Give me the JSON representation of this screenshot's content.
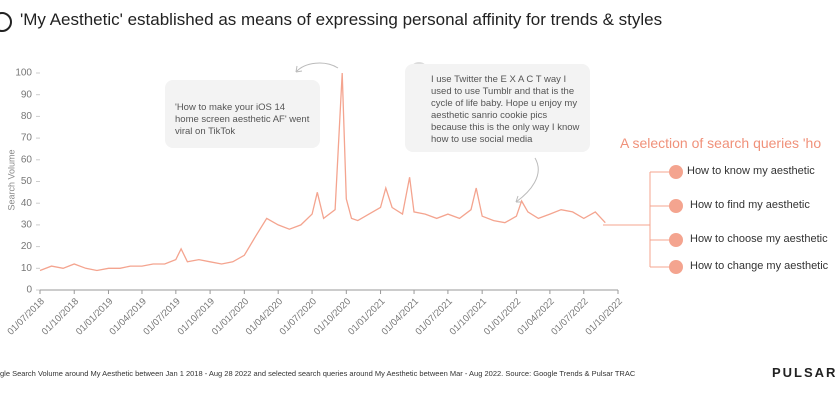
{
  "chart_data": {
    "type": "line",
    "title": "'My Aesthetic' established as means of expressing personal affinity for trends & styles",
    "y_label": "Search Volume",
    "color": "#f4a48f",
    "x": [
      "2018-07-01",
      "2018-08-01",
      "2018-09-01",
      "2018-10-01",
      "2018-11-01",
      "2018-12-01",
      "2019-01-01",
      "2019-02-01",
      "2019-03-01",
      "2019-04-01",
      "2019-05-01",
      "2019-06-01",
      "2019-07-01",
      "2019-07-15",
      "2019-08-01",
      "2019-09-01",
      "2019-10-01",
      "2019-11-01",
      "2019-12-01",
      "2020-01-01",
      "2020-02-01",
      "2020-03-01",
      "2020-04-01",
      "2020-05-01",
      "2020-06-01",
      "2020-07-01",
      "2020-07-15",
      "2020-08-01",
      "2020-09-01",
      "2020-09-20",
      "2020-10-01",
      "2020-10-15",
      "2020-11-01",
      "2020-12-01",
      "2021-01-01",
      "2021-01-15",
      "2021-02-01",
      "2021-03-01",
      "2021-03-20",
      "2021-04-01",
      "2021-05-01",
      "2021-06-01",
      "2021-07-01",
      "2021-08-01",
      "2021-09-01",
      "2021-09-15",
      "2021-10-01",
      "2021-11-01",
      "2021-12-01",
      "2022-01-01",
      "2022-01-15",
      "2022-02-01",
      "2022-03-01",
      "2022-04-01",
      "2022-05-01",
      "2022-06-01",
      "2022-07-01",
      "2022-08-01",
      "2022-08-28"
    ],
    "values": [
      9,
      11,
      10,
      12,
      10,
      9,
      10,
      10,
      11,
      11,
      12,
      12,
      14,
      19,
      13,
      14,
      13,
      12,
      13,
      16,
      25,
      33,
      30,
      28,
      30,
      35,
      45,
      33,
      37,
      100,
      42,
      33,
      32,
      35,
      38,
      47,
      38,
      35,
      52,
      36,
      35,
      33,
      35,
      33,
      37,
      47,
      34,
      32,
      31,
      34,
      41,
      36,
      33,
      35,
      37,
      36,
      33,
      36,
      31
    ],
    "xlim": [
      "2018-07-01",
      "2022-10-01"
    ],
    "xticks": [
      {
        "value": "2018-07-01",
        "label": "01/07/2018"
      },
      {
        "value": "2018-10-01",
        "label": "01/10/2018"
      },
      {
        "value": "2019-01-01",
        "label": "01/01/2019"
      },
      {
        "value": "2019-04-01",
        "label": "01/04/2019"
      },
      {
        "value": "2019-07-01",
        "label": "01/07/2019"
      },
      {
        "value": "2019-10-01",
        "label": "01/10/2019"
      },
      {
        "value": "2020-01-01",
        "label": "01/01/2020"
      },
      {
        "value": "2020-04-01",
        "label": "01/04/2020"
      },
      {
        "value": "2020-07-01",
        "label": "01/07/2020"
      },
      {
        "value": "2020-10-01",
        "label": "01/10/2020"
      },
      {
        "value": "2021-01-01",
        "label": "01/01/2021"
      },
      {
        "value": "2021-04-01",
        "label": "01/04/2021"
      },
      {
        "value": "2021-07-01",
        "label": "01/07/2021"
      },
      {
        "value": "2021-10-01",
        "label": "01/10/2021"
      },
      {
        "value": "2022-01-01",
        "label": "01/01/2022"
      },
      {
        "value": "2022-04-01",
        "label": "01/04/2022"
      },
      {
        "value": "2022-07-01",
        "label": "01/07/2022"
      },
      {
        "value": "2022-10-01",
        "label": "01/10/2022"
      }
    ],
    "ylim": [
      0,
      100
    ],
    "yticks": [
      0,
      10,
      20,
      30,
      40,
      50,
      60,
      70,
      80,
      90,
      100
    ],
    "annotations": [
      "'How to make your iOS 14 home screen aesthetic AF' went viral on TikTok",
      "I use Twitter the E X A C T way I used to use Tumblr and that is the cycle of life baby. Hope u enjoy my aesthetic sanrio cookie pics because this is the only way I know how to use social media"
    ]
  },
  "queries": {
    "heading": "A selection of search queries 'ho",
    "items": [
      "How to know my aesthetic",
      "How to find my aesthetic",
      "How to choose my aesthetic",
      "How to change my aesthetic"
    ]
  },
  "footnote": "gle Search Volume around My Aesthetic between Jan 1 2018 - Aug 28 2022 and selected search queries around My Aesthetic between Mar - Aug 2022. Source: Google Trends & Pulsar TRAC",
  "brand": "PULSAR"
}
